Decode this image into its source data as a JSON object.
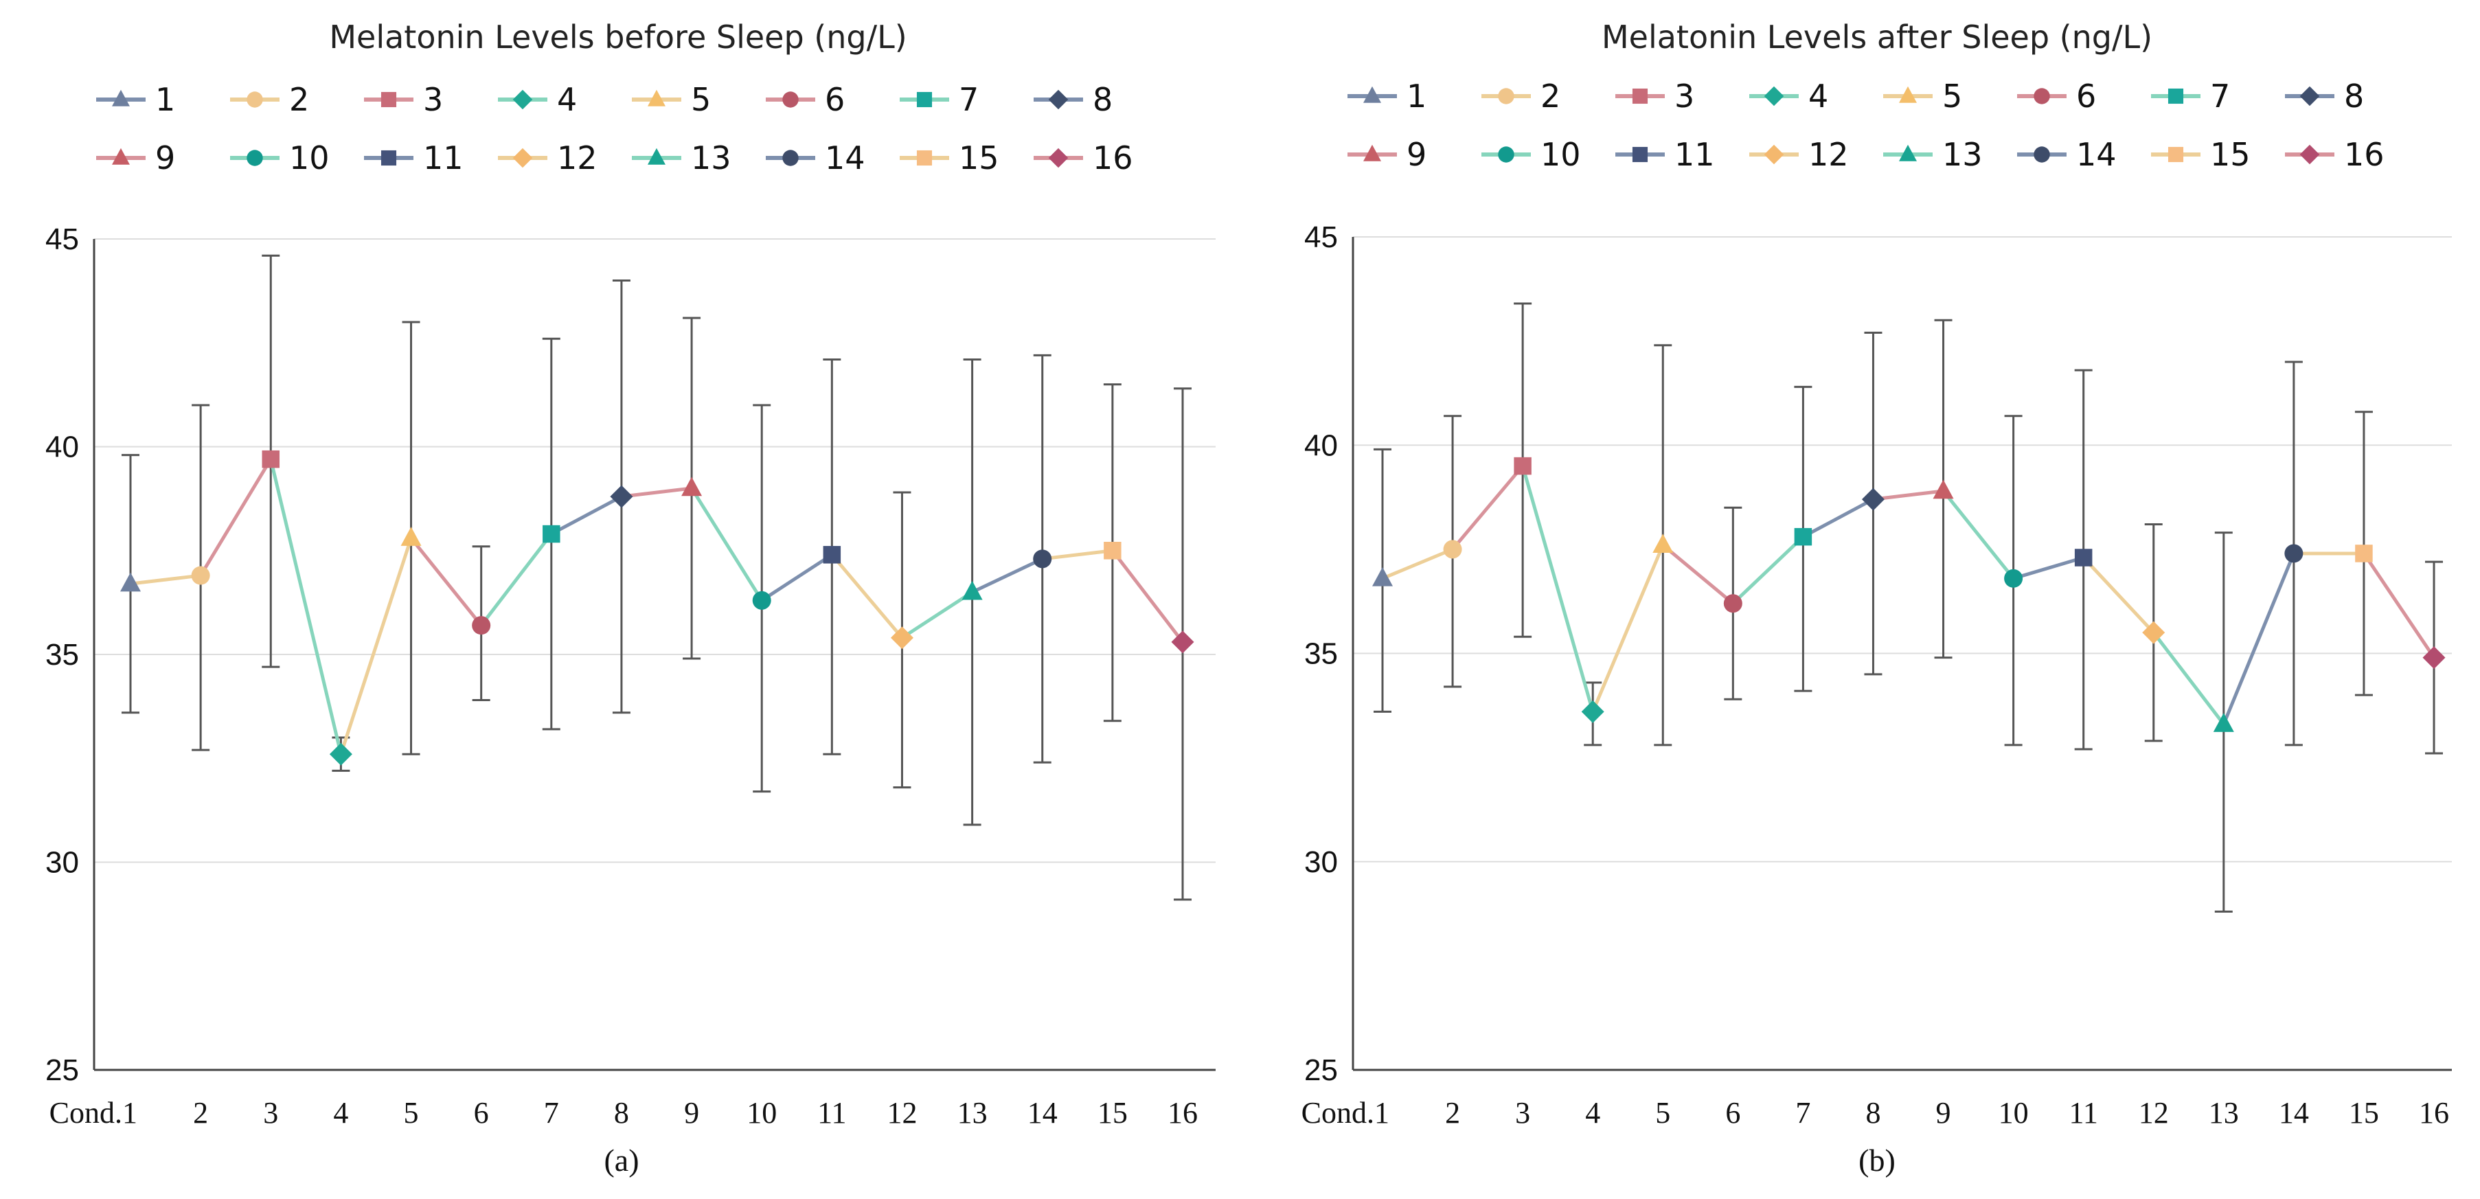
{
  "series_colors": [
    "#6E7F9E",
    "#F0C58A",
    "#C86B78",
    "#1FA894",
    "#F4BE6A",
    "#B85767",
    "#1AA69B",
    "#3F4F6D",
    "#C65E66",
    "#129A8E",
    "#44537A",
    "#F4B86E",
    "#19A592",
    "#3E4C69",
    "#F6BC82",
    "#B24C6E"
  ],
  "line_colors": [
    "#7D8FAD",
    "#EDCF98",
    "#D8939B",
    "#86D5BC",
    "#EDCF98",
    "#D8939B",
    "#86D5BC",
    "#7D8FAD",
    "#D8939B",
    "#86D5BC",
    "#7D8FAD",
    "#EDCF98",
    "#86D5BC",
    "#7D8FAD",
    "#EDCF98",
    "#D8939B"
  ],
  "chart_data": [
    {
      "type": "line",
      "title": "Melatonin Levels before Sleep (ng/L)",
      "panel_label": "(a)",
      "categories": [
        "Cond.1",
        "2",
        "3",
        "4",
        "5",
        "6",
        "7",
        "8",
        "9",
        "10",
        "11",
        "12",
        "13",
        "14",
        "15",
        "16"
      ],
      "legend": [
        "1",
        "2",
        "3",
        "4",
        "5",
        "6",
        "7",
        "8",
        "9",
        "10",
        "11",
        "12",
        "13",
        "14",
        "15",
        "16"
      ],
      "markers": [
        "triangle",
        "circle",
        "square",
        "diamond",
        "triangle",
        "circle",
        "square",
        "diamond",
        "triangle",
        "circle",
        "square",
        "diamond",
        "triangle",
        "circle",
        "square",
        "diamond"
      ],
      "values": [
        36.7,
        36.9,
        39.7,
        32.6,
        37.8,
        35.7,
        37.9,
        38.8,
        39.0,
        36.3,
        37.4,
        35.4,
        36.5,
        37.3,
        37.5,
        35.3
      ],
      "err_upper": [
        39.8,
        41.0,
        44.6,
        33.0,
        43.0,
        37.6,
        42.6,
        44.0,
        43.1,
        41.0,
        42.1,
        38.9,
        42.1,
        42.2,
        41.5,
        41.4
      ],
      "err_lower": [
        33.6,
        32.7,
        34.7,
        32.2,
        32.6,
        33.9,
        33.2,
        33.6,
        34.9,
        31.7,
        32.6,
        31.8,
        30.9,
        32.4,
        33.4,
        29.1
      ],
      "yticks": [
        "45",
        "40",
        "35",
        "30",
        "25"
      ],
      "ylim": [
        25,
        45
      ],
      "grid": true,
      "legend_position": "top"
    },
    {
      "type": "line",
      "title": "Melatonin Levels after Sleep (ng/L)",
      "panel_label": "(b)",
      "categories": [
        "Cond.1",
        "2",
        "3",
        "4",
        "5",
        "6",
        "7",
        "8",
        "9",
        "10",
        "11",
        "12",
        "13",
        "14",
        "15",
        "16"
      ],
      "legend": [
        "1",
        "2",
        "3",
        "4",
        "5",
        "6",
        "7",
        "8",
        "9",
        "10",
        "11",
        "12",
        "13",
        "14",
        "15",
        "16"
      ],
      "markers": [
        "triangle",
        "circle",
        "square",
        "diamond",
        "triangle",
        "circle",
        "square",
        "diamond",
        "triangle",
        "circle",
        "square",
        "diamond",
        "triangle",
        "circle",
        "square",
        "diamond"
      ],
      "values": [
        36.8,
        37.5,
        39.5,
        33.6,
        37.6,
        36.2,
        37.8,
        38.7,
        38.9,
        36.8,
        37.3,
        35.5,
        33.3,
        37.4,
        37.4,
        34.9
      ],
      "err_upper": [
        39.9,
        40.7,
        43.4,
        34.3,
        42.4,
        38.5,
        41.4,
        42.7,
        43.0,
        40.7,
        41.8,
        38.1,
        37.9,
        42.0,
        40.8,
        37.2
      ],
      "err_lower": [
        33.6,
        34.2,
        35.4,
        32.8,
        32.8,
        33.9,
        34.1,
        34.5,
        34.9,
        32.8,
        32.7,
        32.9,
        28.8,
        32.8,
        34.0,
        32.6
      ],
      "yticks": [
        "45",
        "40",
        "35",
        "30",
        "25"
      ],
      "ylim": [
        25,
        45
      ],
      "grid": true,
      "legend_position": "top"
    }
  ]
}
